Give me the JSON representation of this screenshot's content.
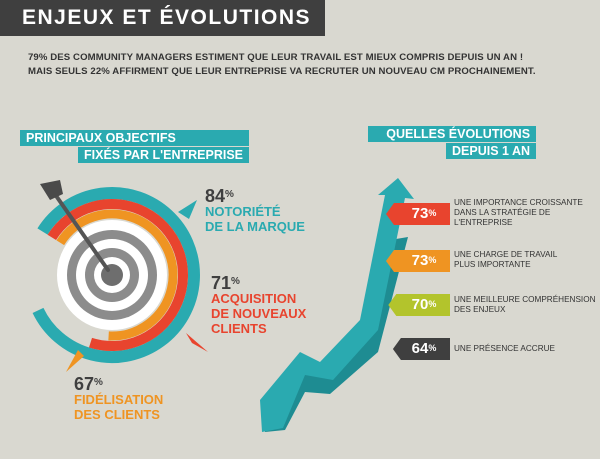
{
  "header": {
    "title": "ENJEUX ET ÉVOLUTIONS"
  },
  "intro": {
    "line1": "79% DES COMMUNITY MANAGERS ESTIMENT QUE LEUR TRAVAIL EST MIEUX COMPRIS DEPUIS UN AN !",
    "line2": "MAIS SEULS 22% AFFIRMENT QUE LEUR ENTREPRISE  VA RECRUTER UN NOUVEAU  CM PROCHAINEMENT."
  },
  "objectives": {
    "title_line1": "PRINCIPAUX OBJECTIFS",
    "title_line2": "FIXÉS PAR L'ENTREPRISE"
  },
  "evolutions": {
    "title_line1": "QUELLES ÉVOLUTIONS",
    "title_line2": "DEPUIS 1 AN"
  },
  "chart_data": [
    {
      "type": "pie",
      "title": "PRINCIPAUX OBJECTIFS FIXÉS PAR L'ENTREPRISE",
      "unit": "%",
      "categories": [
        "NOTORIÉTÉ DE LA MARQUE",
        "ACQUISITION DE NOUVEAUX CLIENTS",
        "FIDÉLISATION DES CLIENTS"
      ],
      "values": [
        84,
        71,
        67
      ],
      "labels": [
        {
          "value": "84",
          "line1": "NOTORIÉTÉ",
          "line2": "DE LA MARQUE",
          "color": "#2aaab0"
        },
        {
          "value": "71",
          "line1": "ACQUISITION",
          "line2": "DE NOUVEAUX",
          "line3": "CLIENTS",
          "color": "#e8442e"
        },
        {
          "value": "67",
          "line1": "FIDÉLISATION",
          "line2": "DES CLIENTS",
          "color": "#ef9422"
        }
      ],
      "colors": [
        "#2aaab0",
        "#e8442e",
        "#ef9422"
      ]
    },
    {
      "type": "bar",
      "title": "QUELLES ÉVOLUTIONS DEPUIS 1 AN",
      "unit": "%",
      "categories": [
        "UNE IMPORTANCE CROISSANTE DANS LA STRATÉGIE DE L'ENTREPRISE",
        "UNE CHARGE DE TRAVAIL PLUS IMPORTANTE",
        "UNE MEILLEURE COMPRÉHENSION DES ENJEUX",
        "UNE PRÉSENCE ACCRUE"
      ],
      "values": [
        73,
        73,
        70,
        64
      ],
      "items": [
        {
          "value": "73",
          "lines": [
            "UNE IMPORTANCE CROISSANTE",
            "DANS LA STRATÉGIE DE",
            "L'ENTREPRISE"
          ],
          "color": "#e8442e"
        },
        {
          "value": "73",
          "lines": [
            "UNE CHARGE DE TRAVAIL",
            "PLUS IMPORTANTE"
          ],
          "color": "#ef9422"
        },
        {
          "value": "70",
          "lines": [
            "UNE MEILLEURE COMPRÉHENSION",
            "DES ENJEUX"
          ],
          "color": "#b3c42c"
        },
        {
          "value": "64",
          "lines": [
            "UNE PRÉSENCE ACCRUE"
          ],
          "color": "#3f3f3f"
        }
      ]
    }
  ]
}
